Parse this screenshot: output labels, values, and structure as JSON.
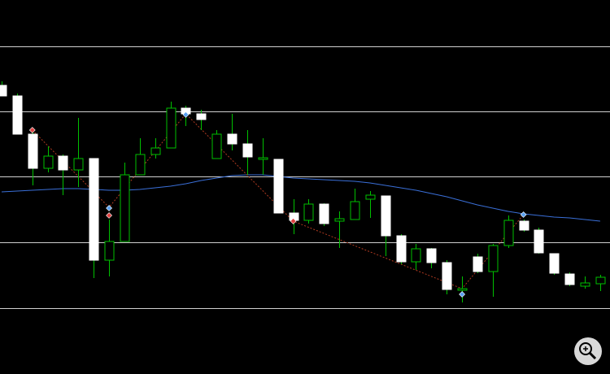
{
  "chart_data": {
    "type": "candlestick",
    "ylim": [
      0,
      460
    ],
    "yticks": [
      403,
      323,
      243,
      162,
      81
    ],
    "grid": true,
    "bull_color": "#00c000",
    "bear_color": "#ffffff",
    "open": [
      355,
      342,
      295,
      253,
      268,
      251,
      265,
      140,
      163,
      245,
      270,
      278,
      327,
      320,
      265,
      295,
      283,
      264,
      264,
      198,
      189,
      209,
      188,
      190,
      215,
      219,
      170,
      138,
      154,
      137,
      103,
      144,
      126,
      158,
      188,
      177,
      148,
      123,
      108,
      111
    ],
    "high": [
      360,
      345,
      302,
      280,
      270,
      315,
      265,
      190,
      260,
      290,
      290,
      335,
      330,
      325,
      300,
      320,
      300,
      290,
      264,
      215,
      215,
      210,
      200,
      228,
      225,
      219,
      172,
      160,
      155,
      140,
      120,
      148,
      160,
      195,
      190,
      180,
      148,
      125,
      120,
      122
    ],
    "low": [
      342,
      295,
      232,
      248,
      220,
      230,
      118,
      120,
      163,
      245,
      265,
      278,
      305,
      300,
      265,
      275,
      245,
      245,
      198,
      172,
      185,
      182,
      155,
      190,
      192,
      145,
      135,
      128,
      130,
      98,
      88,
      124,
      95,
      155,
      175,
      148,
      122,
      108,
      105,
      102
    ],
    "close": [
      342,
      295,
      253,
      268,
      251,
      265,
      140,
      163,
      245,
      270,
      278,
      327,
      320,
      313,
      295,
      283,
      267,
      266,
      198,
      189,
      209,
      185,
      191,
      212,
      220,
      170,
      138,
      154,
      137,
      104,
      105,
      126,
      158,
      189,
      177,
      149,
      124,
      110,
      112,
      119
    ],
    "moving_average": {
      "color": "#3a6fd8",
      "values": [
        224,
        225,
        226,
        227,
        228,
        228,
        227,
        226,
        226,
        227,
        229,
        231,
        234,
        238,
        241,
        244,
        245,
        245,
        243,
        241,
        240,
        239,
        238,
        237,
        235,
        232,
        229,
        226,
        222,
        218,
        213,
        208,
        204,
        200,
        197,
        195,
        193,
        192,
        190,
        188
      ]
    },
    "zigzag": {
      "color": "#b03a20",
      "x": [
        2,
        7,
        12,
        19,
        30,
        34
      ],
      "values": [
        300,
        205,
        320,
        188,
        105,
        196
      ]
    },
    "signals": [
      {
        "x": 2,
        "value": 300,
        "color": "#e04040"
      },
      {
        "x": 7,
        "value": 204,
        "color": "#5aa0f0"
      },
      {
        "x": 7,
        "value": 195,
        "color": "#e04040"
      },
      {
        "x": 12,
        "value": 319,
        "color": "#5aa0f0"
      },
      {
        "x": 19,
        "value": 188,
        "color": "#e04040"
      },
      {
        "x": 30,
        "value": 98,
        "color": "#5aa0f0"
      },
      {
        "x": 34,
        "value": 196,
        "color": "#5aa0f0"
      }
    ]
  }
}
